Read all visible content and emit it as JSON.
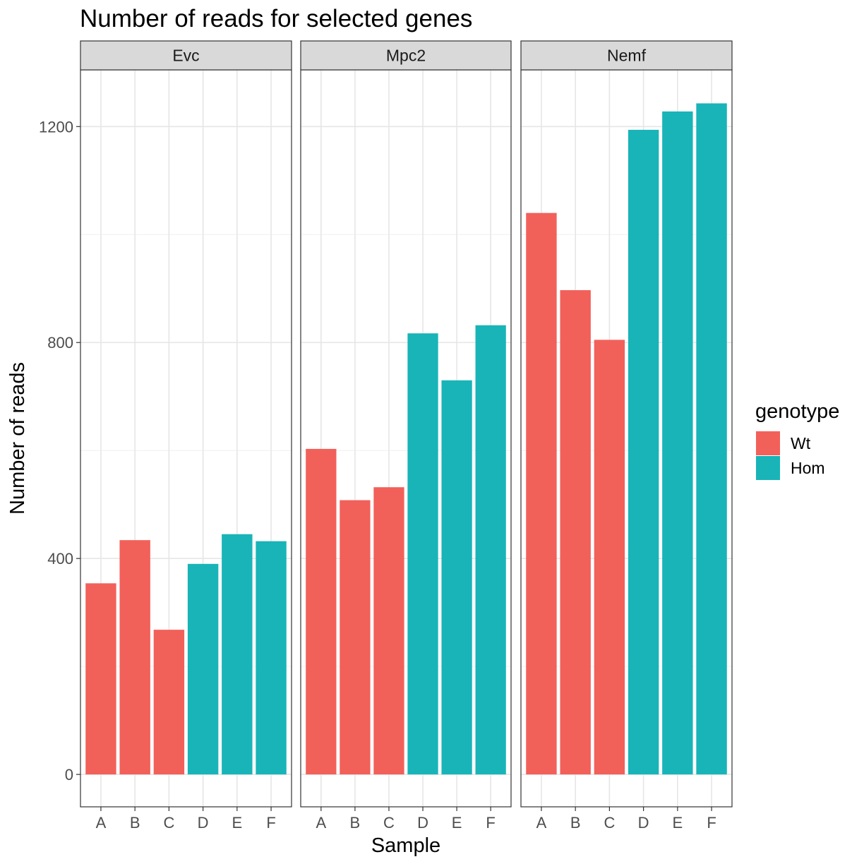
{
  "chart_data": {
    "type": "bar",
    "title": "Number of reads for selected genes",
    "xlabel": "Sample",
    "ylabel": "Number of reads",
    "categories": [
      "A",
      "B",
      "C",
      "D",
      "E",
      "F"
    ],
    "ylim": [
      -60,
      1305
    ],
    "yticks": [
      0,
      400,
      800,
      1200
    ],
    "grid": true,
    "facets": [
      {
        "name": "Evc",
        "values": [
          354,
          434,
          268,
          390,
          445,
          432
        ]
      },
      {
        "name": "Mpc2",
        "values": [
          603,
          508,
          532,
          817,
          730,
          832
        ]
      },
      {
        "name": "Nemf",
        "values": [
          1040,
          897,
          805,
          1194,
          1228,
          1243
        ]
      }
    ],
    "fill_by": "genotype",
    "genotype": [
      "Wt",
      "Wt",
      "Wt",
      "Hom",
      "Hom",
      "Hom"
    ],
    "legend": {
      "title": "genotype",
      "placement": "right",
      "entries": [
        {
          "name": "Wt",
          "color": "#F8766D"
        },
        {
          "name": "Hom",
          "color": "#00BFC4"
        }
      ]
    },
    "colors": {
      "Wt": "#F2605A",
      "Hom": "#18B4B8"
    }
  }
}
